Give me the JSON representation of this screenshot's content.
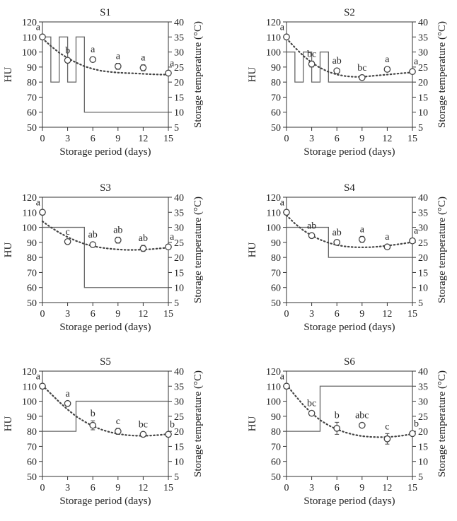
{
  "axes_text": {
    "xlabel": "Storage period (days)",
    "ylabel_left": "HU",
    "ylabel_right": "Storage temperature (°C)"
  },
  "colors": {
    "marker_fill": "#ffffff",
    "line": "#444444",
    "temp_line": "#666666",
    "axis": "#333333"
  },
  "chart_data": [
    {
      "type": "scatter",
      "title": "S1",
      "x": [
        0,
        3,
        6,
        9,
        12,
        15
      ],
      "y": [
        110,
        94.5,
        95,
        90.5,
        89.5,
        86
      ],
      "err": [
        1,
        1,
        1,
        2,
        2,
        1
      ],
      "letters": [
        "a",
        "b",
        "a",
        "a",
        "a",
        "a"
      ],
      "trend": [
        109,
        104,
        99.5,
        96,
        93,
        90.5,
        88.8,
        87.5,
        86.8,
        86.3,
        86,
        85.8,
        85.5,
        85.2,
        85,
        85
      ],
      "temperature": {
        "x": [
          0,
          1,
          1,
          2,
          2,
          3,
          3,
          4,
          4,
          5,
          5,
          15
        ],
        "y": [
          35,
          35,
          20,
          20,
          35,
          35,
          20,
          20,
          35,
          35,
          10,
          10
        ]
      },
      "xlim": [
        0,
        15
      ],
      "xticks": [
        0,
        3,
        6,
        9,
        12,
        15
      ],
      "ylim": [
        50,
        120
      ],
      "yticks": [
        50,
        60,
        70,
        80,
        90,
        100,
        110,
        120
      ],
      "y2lim": [
        5,
        40
      ],
      "y2ticks": [
        5,
        10,
        15,
        20,
        25,
        30,
        35,
        40
      ],
      "xlabel": "Storage period (days)",
      "ylabel": "HU",
      "y2label": "Storage temperature (°C)"
    },
    {
      "type": "scatter",
      "title": "S2",
      "x": [
        0,
        3,
        6,
        9,
        12,
        15
      ],
      "y": [
        110,
        92,
        87.5,
        83,
        88.5,
        87
      ],
      "err": [
        1,
        2,
        1,
        1.5,
        1.5,
        1
      ],
      "letters": [
        "a",
        "bc",
        "ab",
        "bc",
        "a",
        "a"
      ],
      "trend": [
        109,
        103,
        97.5,
        93,
        89.5,
        86.8,
        85,
        84,
        83.5,
        83.5,
        84,
        84.5,
        85,
        85.5,
        86,
        86.5
      ],
      "temperature": {
        "x": [
          0,
          1,
          1,
          2,
          2,
          3,
          3,
          4,
          4,
          5,
          5,
          15
        ],
        "y": [
          30,
          30,
          20,
          20,
          30,
          30,
          20,
          20,
          30,
          30,
          20,
          20
        ]
      },
      "xlim": [
        0,
        15
      ],
      "xticks": [
        0,
        3,
        6,
        9,
        12,
        15
      ],
      "ylim": [
        50,
        120
      ],
      "yticks": [
        50,
        60,
        70,
        80,
        90,
        100,
        110,
        120
      ],
      "y2lim": [
        5,
        40
      ],
      "y2ticks": [
        5,
        10,
        15,
        20,
        25,
        30,
        35,
        40
      ],
      "xlabel": "Storage period (days)",
      "ylabel": "HU",
      "y2label": "Storage temperature (°C)"
    },
    {
      "type": "scatter",
      "title": "S3",
      "x": [
        0,
        3,
        6,
        9,
        12,
        15
      ],
      "y": [
        110,
        90.5,
        88.5,
        91.5,
        86,
        87
      ],
      "err": [
        1,
        1.5,
        1.5,
        2,
        2,
        1
      ],
      "letters": [
        "a",
        "c",
        "ab",
        "ab",
        "ab",
        "a"
      ],
      "trend": [
        104,
        100,
        96.5,
        93.5,
        91,
        89,
        87.5,
        86.5,
        85.8,
        85.3,
        85,
        85,
        85.2,
        85.5,
        86,
        86.5
      ],
      "temperature": {
        "x": [
          0,
          5,
          5,
          15
        ],
        "y": [
          30,
          30,
          10,
          10
        ]
      },
      "xlim": [
        0,
        15
      ],
      "xticks": [
        0,
        3,
        6,
        9,
        12,
        15
      ],
      "ylim": [
        50,
        120
      ],
      "yticks": [
        50,
        60,
        70,
        80,
        90,
        100,
        110,
        120
      ],
      "y2lim": [
        5,
        40
      ],
      "y2ticks": [
        5,
        10,
        15,
        20,
        25,
        30,
        35,
        40
      ],
      "xlabel": "Storage period (days)",
      "ylabel": "HU",
      "y2label": "Storage temperature (°C)"
    },
    {
      "type": "scatter",
      "title": "S4",
      "x": [
        0,
        3,
        6,
        9,
        12,
        15
      ],
      "y": [
        110,
        94.5,
        90,
        92,
        87,
        91
      ],
      "err": [
        1,
        1.5,
        1.5,
        2,
        1,
        1
      ],
      "letters": [
        "a",
        "ab",
        "ab",
        "a",
        "a",
        "a"
      ],
      "trend": [
        108,
        102.5,
        98,
        94.5,
        91.8,
        89.7,
        88.2,
        87.3,
        86.8,
        86.7,
        86.8,
        87.2,
        87.8,
        88.5,
        89.3,
        90.2
      ],
      "temperature": {
        "x": [
          0,
          5,
          5,
          15
        ],
        "y": [
          30,
          30,
          20,
          20
        ]
      },
      "xlim": [
        0,
        15
      ],
      "xticks": [
        0,
        3,
        6,
        9,
        12,
        15
      ],
      "ylim": [
        50,
        120
      ],
      "yticks": [
        50,
        60,
        70,
        80,
        90,
        100,
        110,
        120
      ],
      "y2lim": [
        5,
        40
      ],
      "y2ticks": [
        5,
        10,
        15,
        20,
        25,
        30,
        35,
        40
      ],
      "xlabel": "Storage period (days)",
      "ylabel": "HU",
      "y2label": "Storage temperature (°C)"
    },
    {
      "type": "scatter",
      "title": "S5",
      "x": [
        0,
        3,
        6,
        9,
        12,
        15
      ],
      "y": [
        110,
        98.5,
        84,
        80,
        78,
        78
      ],
      "err": [
        1,
        1,
        3,
        2,
        1,
        1.5
      ],
      "letters": [
        "a",
        "a",
        "b",
        "c",
        "bc",
        "b"
      ],
      "trend": [
        110.5,
        105,
        99.5,
        94.5,
        90,
        86.5,
        83.5,
        81.2,
        79.5,
        78.3,
        77.5,
        77.1,
        77,
        77.2,
        77.6,
        78.2
      ],
      "temperature": {
        "x": [
          0,
          4,
          4,
          15
        ],
        "y": [
          20,
          20,
          30,
          30
        ]
      },
      "xlim": [
        0,
        15
      ],
      "xticks": [
        0,
        3,
        6,
        9,
        12,
        15
      ],
      "ylim": [
        50,
        120
      ],
      "yticks": [
        50,
        60,
        70,
        80,
        90,
        100,
        110,
        120
      ],
      "y2lim": [
        5,
        40
      ],
      "y2ticks": [
        5,
        10,
        15,
        20,
        25,
        30,
        35,
        40
      ],
      "xlabel": "Storage period (days)",
      "ylabel": "HU",
      "y2label": "Storage temperature (°C)"
    },
    {
      "type": "scatter",
      "title": "S6",
      "x": [
        0,
        3,
        6,
        9,
        12,
        15
      ],
      "y": [
        110,
        92,
        82,
        84,
        75,
        78.5
      ],
      "err": [
        1,
        1.5,
        4,
        1,
        3.5,
        1
      ],
      "letters": [
        "a",
        "bc",
        "b",
        "abc",
        "c",
        "b"
      ],
      "trend": [
        111,
        104,
        97.5,
        92,
        87.5,
        84,
        81.3,
        79.3,
        77.8,
        76.8,
        76.3,
        76.1,
        76.2,
        76.6,
        77.3,
        78.3
      ],
      "temperature": {
        "x": [
          0,
          4,
          4,
          15
        ],
        "y": [
          20,
          20,
          35,
          35
        ]
      },
      "xlim": [
        0,
        15
      ],
      "xticks": [
        0,
        3,
        6,
        9,
        12,
        15
      ],
      "ylim": [
        50,
        120
      ],
      "yticks": [
        50,
        60,
        70,
        80,
        90,
        100,
        110,
        120
      ],
      "y2lim": [
        5,
        40
      ],
      "y2ticks": [
        5,
        10,
        15,
        20,
        25,
        30,
        35,
        40
      ],
      "xlabel": "Storage period (days)",
      "ylabel": "HU",
      "y2label": "Storage temperature (°C)"
    }
  ]
}
